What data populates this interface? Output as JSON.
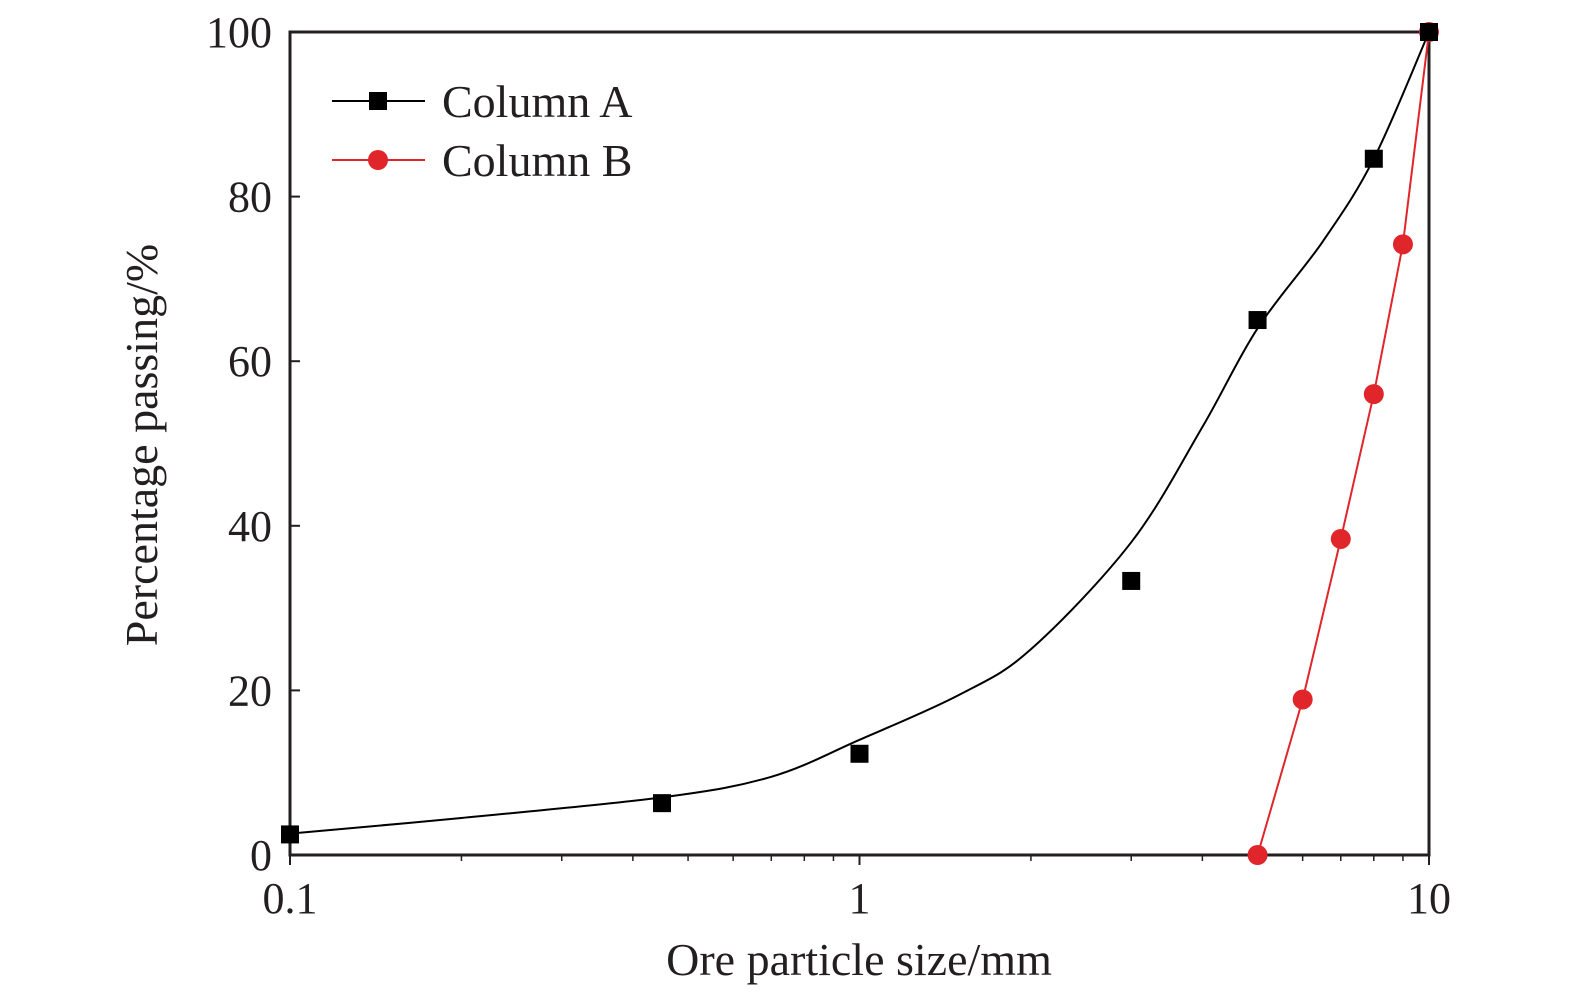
{
  "chart_data": {
    "type": "scatter",
    "xlabel": "Ore particle size/mm",
    "ylabel": "Percentage passing/%",
    "xscale": "log",
    "xlim": [
      0.1,
      10
    ],
    "ylim": [
      0,
      100
    ],
    "xticks": [
      0.1,
      1,
      10
    ],
    "xtick_labels": [
      "0.1",
      "1",
      "10"
    ],
    "yticks": [
      0,
      20,
      40,
      60,
      80,
      100
    ],
    "ytick_labels": [
      "0",
      "20",
      "40",
      "60",
      "80",
      "100"
    ],
    "grid": false,
    "legend_position": "top-left",
    "series": [
      {
        "name": "Column A",
        "color": "#000000",
        "marker": "square",
        "line": "smooth fitted curve",
        "points": [
          {
            "x": 0.1,
            "y": 2.5
          },
          {
            "x": 0.45,
            "y": 6.3
          },
          {
            "x": 1,
            "y": 12.3
          },
          {
            "x": 3,
            "y": 33.3
          },
          {
            "x": 5,
            "y": 65
          },
          {
            "x": 8,
            "y": 84.6
          },
          {
            "x": 10,
            "y": 100
          }
        ],
        "curve": [
          {
            "x": 0.1,
            "y": 2.6
          },
          {
            "x": 0.2,
            "y": 4.5
          },
          {
            "x": 0.45,
            "y": 7.0
          },
          {
            "x": 0.7,
            "y": 9.5
          },
          {
            "x": 1,
            "y": 14
          },
          {
            "x": 1.5,
            "y": 19.5
          },
          {
            "x": 2,
            "y": 25
          },
          {
            "x": 3,
            "y": 38
          },
          {
            "x": 4,
            "y": 52
          },
          {
            "x": 5,
            "y": 64
          },
          {
            "x": 6.5,
            "y": 74.5
          },
          {
            "x": 8,
            "y": 84.6
          },
          {
            "x": 10,
            "y": 100
          }
        ]
      },
      {
        "name": "Column B",
        "color": "#e0262b",
        "marker": "circle",
        "line": "straight segments",
        "points": [
          {
            "x": 5,
            "y": 0
          },
          {
            "x": 6,
            "y": 18.9
          },
          {
            "x": 7,
            "y": 38.4
          },
          {
            "x": 8,
            "y": 56
          },
          {
            "x": 9,
            "y": 74.2
          },
          {
            "x": 10,
            "y": 100
          }
        ]
      }
    ]
  }
}
